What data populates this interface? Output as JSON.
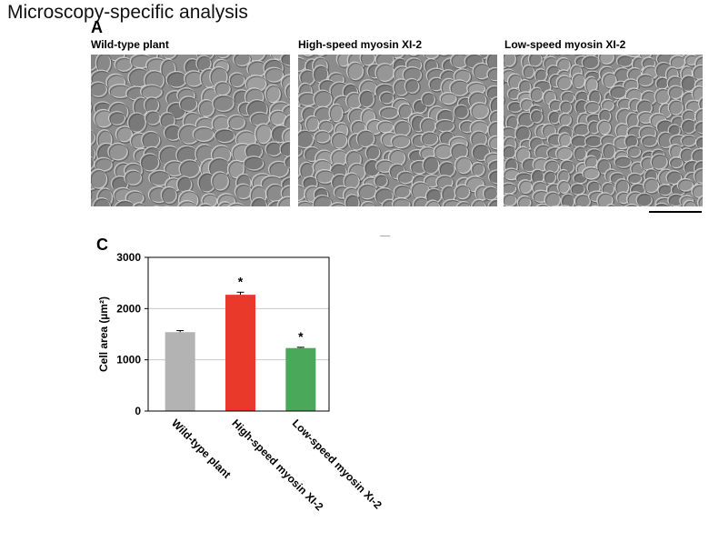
{
  "page_title": "Microscopy-specific analysis",
  "panel_a": {
    "letter": "A",
    "images": [
      {
        "label": "Wild-type plant"
      },
      {
        "label": "High-speed myosin XI-2"
      },
      {
        "label": "Low-speed myosin XI-2"
      }
    ]
  },
  "panel_c": {
    "letter": "C"
  },
  "chart_data": {
    "type": "bar",
    "categories": [
      "Wild-type plant",
      "High-speed myosin XI-2",
      "Low-speed myosin Xı-2"
    ],
    "values": [
      1540,
      2270,
      1230
    ],
    "errors": [
      30,
      50,
      15
    ],
    "significance": [
      "",
      "*",
      "*"
    ],
    "colors": [
      "#b3b3b3",
      "#e8392a",
      "#4aa85a"
    ],
    "ylabel": "Cell area (µm²)",
    "ylim": [
      0,
      3000
    ],
    "yticks": [
      0,
      1000,
      2000,
      3000
    ],
    "grid": true
  }
}
